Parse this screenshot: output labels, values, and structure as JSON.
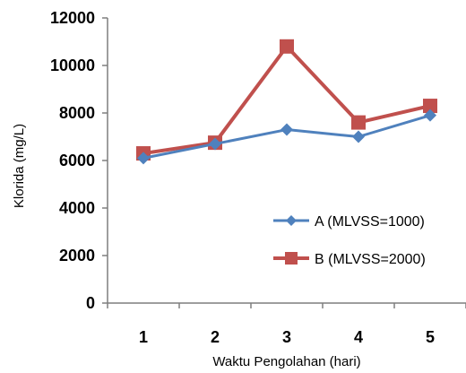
{
  "chart_data": {
    "type": "line",
    "xlabel": "Waktu Pengolahan (hari)",
    "ylabel": "Klorida (mg/L)",
    "categories": [
      "1",
      "2",
      "3",
      "4",
      "5"
    ],
    "ylim": [
      0,
      12000
    ],
    "yticks": [
      "0",
      "2000",
      "4000",
      "6000",
      "8000",
      "10000",
      "12000"
    ],
    "grid": false,
    "legend_position": "right",
    "series": [
      {
        "name": "A (MLVSS=1000)",
        "values": [
          6100,
          6700,
          7300,
          7000,
          7900
        ],
        "color": "#4F81BD",
        "marker": "diamond"
      },
      {
        "name": "B (MLVSS=2000)",
        "values": [
          6300,
          6750,
          10800,
          7600,
          8300
        ],
        "color": "#C0504D",
        "marker": "square"
      }
    ]
  }
}
